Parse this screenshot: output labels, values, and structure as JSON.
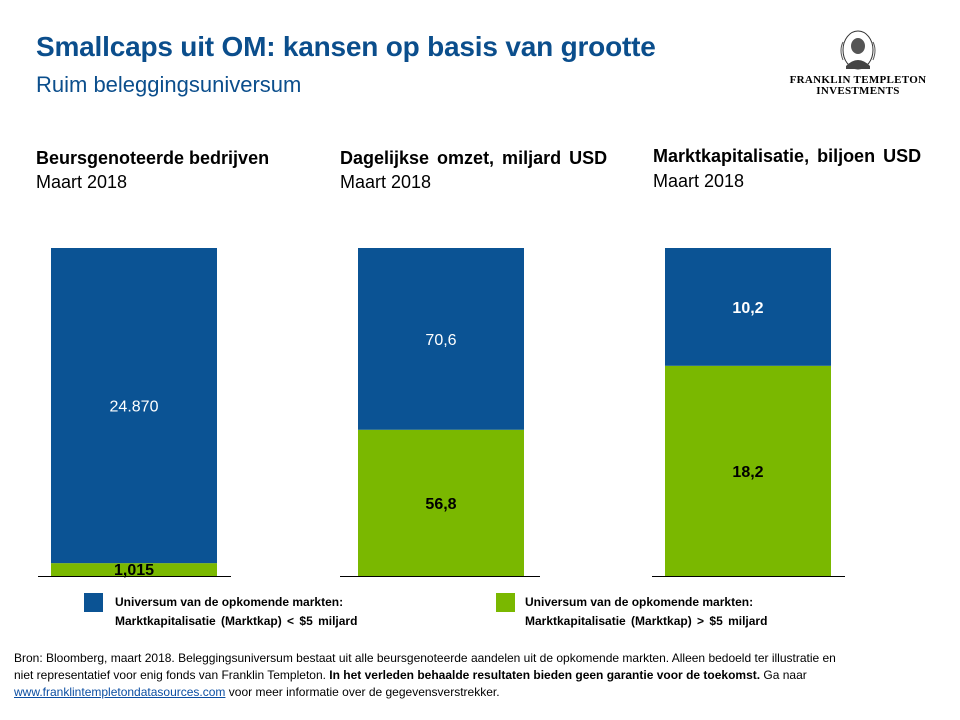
{
  "header": {
    "title": "Smallcaps uit OM: kansen op basis van grootte",
    "subtitle": "Ruim beleggingsuniversum"
  },
  "logo": {
    "line1": "FRANKLIN TEMPLETON",
    "line2": "INVESTMENTS"
  },
  "colors": {
    "title": "#0b4e8c",
    "blue": "#0b5394",
    "green": "#7ab800"
  },
  "chart_data": [
    {
      "type": "bar",
      "stacked": true,
      "title": "Beursgenoteerde bedrijven",
      "subtitle": "Maart 2018",
      "series": [
        {
          "name": "Universum van de opkomende markten: Marktkapitalisatie (Marktkap) > $5 miljard",
          "values": [
            1015
          ],
          "label": "1,015"
        },
        {
          "name": "Universum van de opkomende markten: Marktkapitalisatie (Marktkap) < $5 miljard",
          "values": [
            24870
          ],
          "label": "24.870"
        }
      ]
    },
    {
      "type": "bar",
      "stacked": true,
      "title": "Dagelijkse omzet, miljard USD",
      "subtitle": "Maart 2018",
      "series": [
        {
          "name": "Universum van de opkomende markten: Marktkapitalisatie (Marktkap) > $5 miljard",
          "values": [
            56.8
          ],
          "label": "56,8"
        },
        {
          "name": "Universum van de opkomende markten: Marktkapitalisatie (Marktkap) < $5 miljard",
          "values": [
            70.6
          ],
          "label": "70,6"
        }
      ]
    },
    {
      "type": "bar",
      "stacked": true,
      "title": "Marktkapitalisatie, biljoen USD",
      "subtitle": "Maart 2018",
      "series": [
        {
          "name": "Universum van de opkomende markten: Marktkapitalisatie (Marktkap) > $5 miljard",
          "values": [
            18.2
          ],
          "label": "18,2"
        },
        {
          "name": "Universum van de opkomende markten: Marktkapitalisatie (Marktkap) < $5 miljard",
          "values": [
            10.2
          ],
          "label": "10,2"
        }
      ]
    }
  ],
  "legend": {
    "blue_line1": "Universum van de opkomende markten:",
    "blue_line2": "Marktkapitalisatie (Marktkap) < $5 miljard",
    "green_line1": "Universum van de opkomende markten:",
    "green_line2": "Marktkapitalisatie (Marktkap) > $5 miljard"
  },
  "source": {
    "part1": "Bron: Bloomberg, maart 2018.  Beleggingsuniversum bestaat uit alle beursgenoteerde aandelen uit de opkomende markten. Alleen bedoeld ter illustratie en niet representatief voor enig fonds van Franklin Templeton. ",
    "bold": "In het verleden behaalde resultaten bieden geen garantie voor de toekomst.",
    "part2": "  Ga naar ",
    "link": "www.franklintempletondatasources.com",
    "part3": " voor meer informatie over de gegevensverstrekker."
  }
}
